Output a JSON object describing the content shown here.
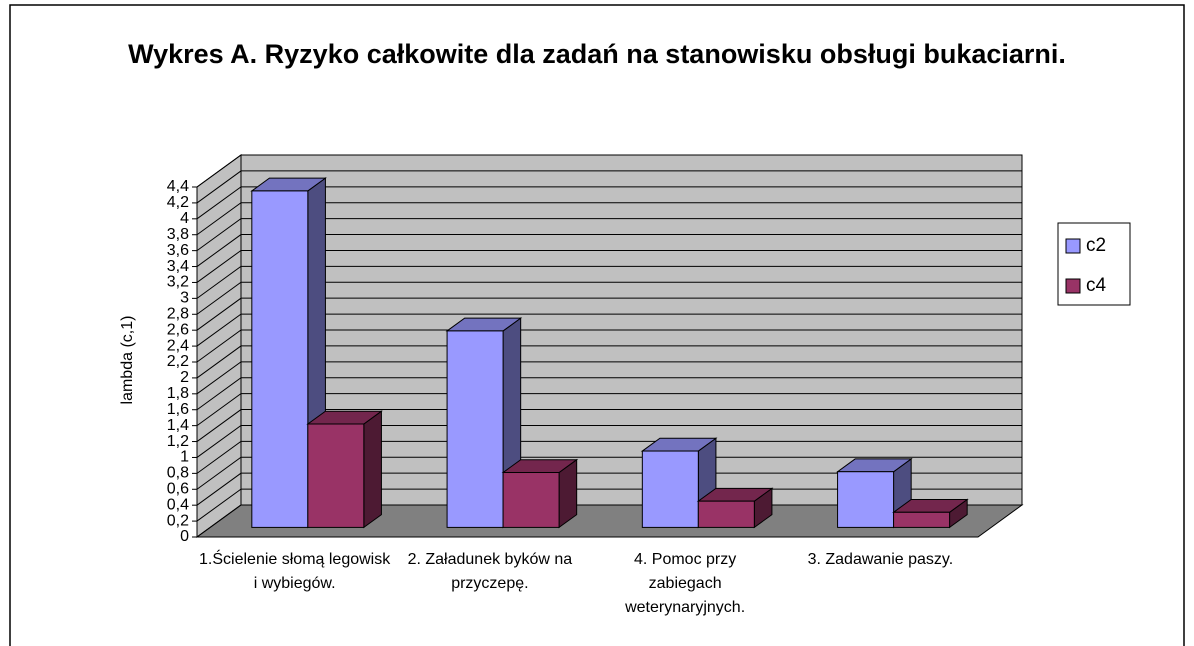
{
  "chart_data": {
    "type": "bar3d",
    "title": "Wykres A. Ryzyko całkowite dla zadań na stanowisku obsługi bukaciarni.",
    "y_label": "lambda (c,1)",
    "categories": [
      "1.Ścielenie słomą legowisk i wybiegów.",
      "2. Załadunek byków na przyczepę.",
      "4. Pomoc przy zabiegach weterynaryjnych.",
      "3. Zadawanie paszy."
    ],
    "series": [
      {
        "name": "c2",
        "color": "#9999ff",
        "values": [
          4.23,
          2.47,
          0.96,
          0.7
        ]
      },
      {
        "name": "c4",
        "color": "#993366",
        "values": [
          1.3,
          0.69,
          0.33,
          0.19
        ]
      }
    ],
    "ylim": [
      0,
      4.4
    ],
    "yticks": [
      0,
      {
        "value": 0.2,
        "label": "0,2"
      },
      {
        "value": 0.4,
        "label": "0,4"
      },
      {
        "value": 0.6,
        "label": "0,6"
      },
      {
        "value": 0.8,
        "label": "0,8"
      },
      1,
      {
        "value": 1.2,
        "label": "1,2"
      },
      {
        "value": 1.4,
        "label": "1,4"
      },
      {
        "value": 1.6,
        "label": "1,6"
      },
      {
        "value": 1.8,
        "label": "1,8"
      },
      2,
      {
        "value": 2.2,
        "label": "2,2"
      },
      {
        "value": 2.4,
        "label": "2,4"
      },
      {
        "value": 2.6,
        "label": "2,6"
      },
      {
        "value": 2.8,
        "label": "2,8"
      },
      3,
      {
        "value": 3.2,
        "label": "3,2"
      },
      {
        "value": 3.4,
        "label": "3,4"
      },
      {
        "value": 3.6,
        "label": "3,6"
      },
      {
        "value": 3.8,
        "label": "3,8"
      },
      4,
      {
        "value": 4.2,
        "label": "4,2"
      },
      {
        "value": 4.4,
        "label": "4,4"
      }
    ],
    "grid": true,
    "legend": "right"
  }
}
